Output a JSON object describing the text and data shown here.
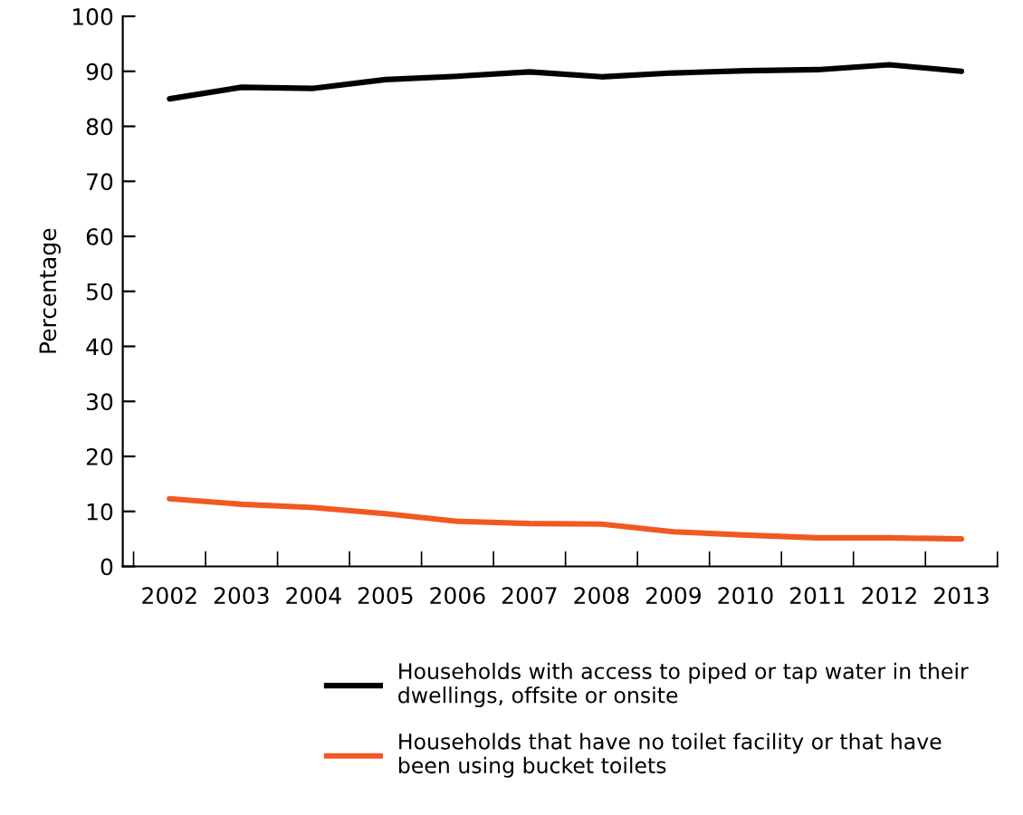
{
  "chart_data": {
    "type": "line",
    "ylabel": "Percentage",
    "categories": [
      "2002",
      "2003",
      "2004",
      "2005",
      "2006",
      "2007",
      "2008",
      "2009",
      "2010",
      "2011",
      "2012",
      "2013"
    ],
    "series": [
      {
        "name": "Households with access to piped or tap water in their dwellings, offsite or onsite",
        "color": "#000000",
        "values": [
          85.0,
          87.1,
          86.9,
          88.5,
          89.1,
          89.9,
          89.0,
          89.7,
          90.1,
          90.3,
          91.2,
          90.0
        ]
      },
      {
        "name": "Households that have no toilet facility or that have been using bucket toilets",
        "color": "#f05a22",
        "values": [
          12.3,
          11.3,
          10.7,
          9.6,
          8.2,
          7.8,
          7.7,
          6.3,
          5.7,
          5.2,
          5.2,
          5.0
        ]
      }
    ],
    "ylim": [
      0,
      100
    ],
    "yticks": [
      0,
      10,
      20,
      30,
      40,
      50,
      60,
      70,
      80,
      90,
      100
    ],
    "grid": false,
    "legend": "bottom",
    "marker": "none",
    "line_style": "solid"
  }
}
